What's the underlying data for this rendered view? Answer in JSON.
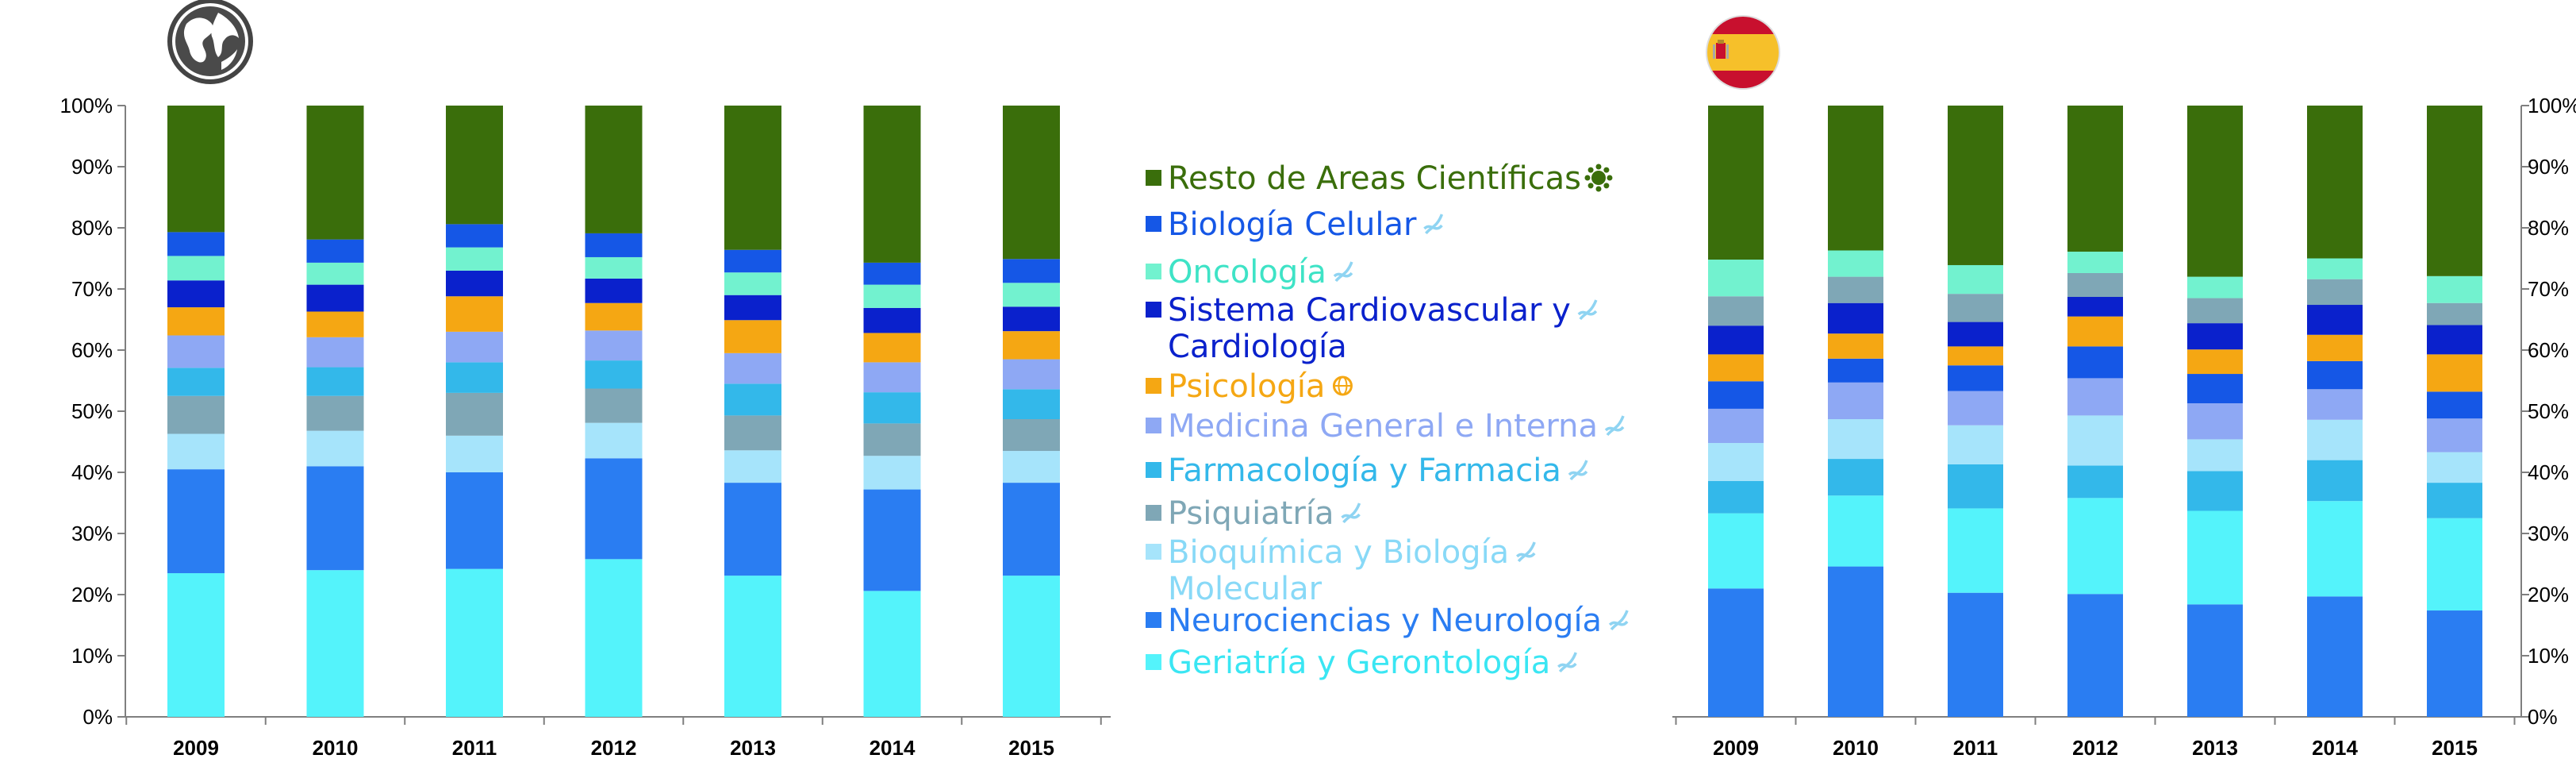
{
  "page": {
    "left_icon": "globe-icon",
    "right_icon": "spain-flag-icon"
  },
  "chart_data": [
    {
      "type": "bar",
      "stacked": true,
      "title": "",
      "xlabel": "",
      "ylabel": "",
      "categories": [
        "2009",
        "2010",
        "2011",
        "2012",
        "2013",
        "2014",
        "2015"
      ],
      "ylim": [
        0,
        100
      ],
      "yticks": [
        "0%",
        "10%",
        "20%",
        "30%",
        "40%",
        "50%",
        "60%",
        "70%",
        "80%",
        "90%",
        "100%"
      ],
      "y_axis_side": "left",
      "grid": false,
      "series": [
        {
          "key": "geriatria",
          "values": [
            23.5,
            24.0,
            24.2,
            25.8,
            23.1,
            20.6,
            23.1
          ]
        },
        {
          "key": "neurociencias",
          "values": [
            17.0,
            17.0,
            15.8,
            16.5,
            15.2,
            16.6,
            15.2
          ]
        },
        {
          "key": "bioquimica",
          "values": [
            5.8,
            5.8,
            6.0,
            5.8,
            5.3,
            5.5,
            5.2
          ]
        },
        {
          "key": "psiquiatria",
          "values": [
            6.2,
            5.7,
            7.0,
            5.6,
            5.7,
            5.3,
            5.2
          ]
        },
        {
          "key": "farmacologia",
          "values": [
            4.6,
            4.7,
            5.0,
            4.6,
            5.2,
            5.1,
            4.9
          ]
        },
        {
          "key": "medicina",
          "values": [
            5.3,
            4.9,
            5.0,
            4.9,
            5.0,
            4.9,
            4.9
          ]
        },
        {
          "key": "psicologia",
          "values": [
            4.6,
            4.2,
            5.8,
            4.5,
            5.4,
            4.8,
            4.6
          ]
        },
        {
          "key": "cardiovascular",
          "values": [
            4.4,
            4.4,
            4.2,
            4.0,
            4.1,
            4.1,
            4.0
          ]
        },
        {
          "key": "oncologia",
          "values": [
            4.0,
            3.6,
            3.8,
            3.5,
            3.7,
            3.8,
            3.9
          ]
        },
        {
          "key": "biologia_celular",
          "values": [
            3.9,
            3.8,
            3.8,
            3.9,
            3.7,
            3.6,
            3.9
          ]
        },
        {
          "key": "resto",
          "values": [
            20.7,
            21.9,
            19.4,
            20.9,
            23.6,
            25.7,
            25.1
          ]
        }
      ]
    },
    {
      "type": "bar",
      "stacked": true,
      "title": "",
      "xlabel": "",
      "ylabel": "",
      "categories": [
        "2009",
        "2010",
        "2011",
        "2012",
        "2013",
        "2014",
        "2015"
      ],
      "ylim": [
        0,
        100
      ],
      "yticks": [
        "0%",
        "10%",
        "20%",
        "30%",
        "40%",
        "50%",
        "60%",
        "70%",
        "80%",
        "90%",
        "100%"
      ],
      "y_axis_side": "right",
      "grid": false,
      "series": [
        {
          "key": "neurociencias",
          "values": [
            21.0,
            24.6,
            20.3,
            20.1,
            18.4,
            19.7,
            17.4
          ]
        },
        {
          "key": "geriatria",
          "values": [
            12.3,
            11.6,
            13.8,
            15.7,
            15.3,
            15.6,
            15.1
          ]
        },
        {
          "key": "farmacologia",
          "values": [
            5.3,
            6.0,
            7.2,
            5.3,
            6.5,
            6.7,
            5.8
          ]
        },
        {
          "key": "bioquimica",
          "values": [
            6.2,
            6.5,
            6.4,
            8.2,
            5.2,
            6.6,
            5.0
          ]
        },
        {
          "key": "medicina",
          "values": [
            5.6,
            6.0,
            5.6,
            6.1,
            5.9,
            5.0,
            5.5
          ]
        },
        {
          "key": "biologia_celular",
          "values": [
            4.5,
            3.9,
            4.2,
            5.2,
            4.8,
            4.6,
            4.4
          ]
        },
        {
          "key": "psicologia",
          "values": [
            4.4,
            4.1,
            3.1,
            4.9,
            4.0,
            4.3,
            6.1
          ]
        },
        {
          "key": "cardiovascular",
          "values": [
            4.7,
            5.0,
            4.0,
            3.2,
            4.3,
            4.9,
            4.8
          ]
        },
        {
          "key": "psiquiatria",
          "values": [
            4.8,
            4.3,
            4.6,
            3.9,
            4.1,
            4.2,
            3.6
          ]
        },
        {
          "key": "oncologia",
          "values": [
            6.0,
            4.3,
            4.7,
            3.5,
            3.5,
            3.4,
            4.4
          ]
        },
        {
          "key": "resto",
          "values": [
            25.2,
            23.7,
            26.1,
            23.9,
            28.0,
            25.0,
            27.9
          ]
        }
      ]
    }
  ],
  "series_styles": {
    "resto": {
      "color": "#3a6e0b"
    },
    "biologia_celular": {
      "color": "#1557e6"
    },
    "oncologia": {
      "color": "#72f2cf"
    },
    "cardiovascular": {
      "color": "#0a21cc"
    },
    "psicologia": {
      "color": "#f5a713"
    },
    "medicina": {
      "color": "#8ea8f4"
    },
    "farmacologia": {
      "color": "#33b8ea"
    },
    "psiquiatria": {
      "color": "#7fa7b6"
    },
    "bioquimica": {
      "color": "#a6e4fb"
    },
    "neurociencias": {
      "color": "#2a7df2"
    },
    "geriatria": {
      "color": "#54f3fb"
    }
  },
  "legend": {
    "placement": "center",
    "entries": [
      {
        "key": "resto",
        "lines": [
          "Resto de Areas Científicas"
        ],
        "icon": "virus-icon",
        "color": "#3a6e0b",
        "text_color": "#3a6e0b"
      },
      {
        "key": "biologia_celular",
        "lines": [
          "Biología Celular"
        ],
        "icon": "dna-icon",
        "color": "#1557e6",
        "text_color": "#1557e6"
      },
      {
        "key": "oncologia",
        "lines": [
          "Oncología"
        ],
        "icon": "dna-icon",
        "color": "#72f2cf",
        "text_color": "#3ee3c6"
      },
      {
        "key": "cardiovascular",
        "lines": [
          "Sistema Cardiovascular y",
          "Cardiología"
        ],
        "icon": "dna-icon",
        "color": "#0a21cc",
        "text_color": "#0a21cc"
      },
      {
        "key": "psicologia",
        "lines": [
          "Psicología"
        ],
        "icon": "globe-mini-icon",
        "color": "#f5a713",
        "text_color": "#f5a713"
      },
      {
        "key": "medicina",
        "lines": [
          "Medicina General e Interna"
        ],
        "icon": "dna-icon",
        "color": "#8ea8f4",
        "text_color": "#8ea8f4"
      },
      {
        "key": "farmacologia",
        "lines": [
          "Farmacología y Farmacia"
        ],
        "icon": "dna-icon",
        "color": "#33b8ea",
        "text_color": "#33b8ea"
      },
      {
        "key": "psiquiatria",
        "lines": [
          "Psiquiatría"
        ],
        "icon": "dna-icon",
        "color": "#7fa7b6",
        "text_color": "#7fa7b6"
      },
      {
        "key": "bioquimica",
        "lines": [
          "Bioquímica y Biología",
          "Molecular"
        ],
        "icon": "dna-icon",
        "color": "#a6e4fb",
        "text_color": "#88d9f7"
      },
      {
        "key": "neurociencias",
        "lines": [
          "Neurociencias y Neurología"
        ],
        "icon": "dna-icon",
        "color": "#2a7df2",
        "text_color": "#2a7df2"
      },
      {
        "key": "geriatria",
        "lines": [
          "Geriatría y Gerontología"
        ],
        "icon": "dna-icon",
        "color": "#54f3fb",
        "text_color": "#3ae6f3"
      }
    ]
  }
}
